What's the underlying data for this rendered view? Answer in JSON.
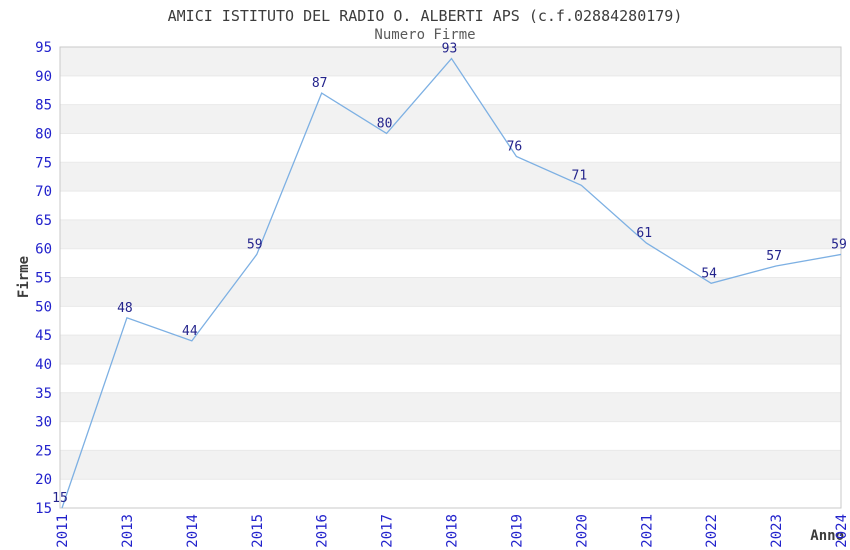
{
  "header": {
    "title": "AMICI ISTITUTO DEL RADIO O. ALBERTI APS (c.f.02884280179)",
    "subtitle": "Numero Firme"
  },
  "chart_data": {
    "type": "line",
    "title": "AMICI ISTITUTO DEL RADIO O. ALBERTI APS (c.f.02884280179)",
    "subtitle": "Numero Firme",
    "categories": [
      "2011",
      "2013",
      "2014",
      "2015",
      "2016",
      "2017",
      "2018",
      "2019",
      "2020",
      "2021",
      "2022",
      "2023",
      "2024"
    ],
    "values": [
      15,
      48,
      44,
      59,
      87,
      80,
      93,
      76,
      71,
      61,
      54,
      57,
      59
    ],
    "xlabel": "Anno",
    "ylabel": "Firme",
    "ylim": [
      15,
      95
    ],
    "ytick_step": 5,
    "grid": "horizontal-bands-alternating",
    "legend": "none",
    "point_labels_visible": true,
    "colors": {
      "line": "#7db0e3",
      "point_label": "#24248c",
      "tick_label": "#2222cc",
      "band_gray": "#f2f2f2",
      "gridline": "#e9e9e9",
      "plot_border": "#c9c9c9",
      "title_text": "#3c3c3c",
      "subtitle_text": "#5a5a5a",
      "axis_title_text": "#3c3c3c",
      "background": "#ffffff"
    }
  }
}
